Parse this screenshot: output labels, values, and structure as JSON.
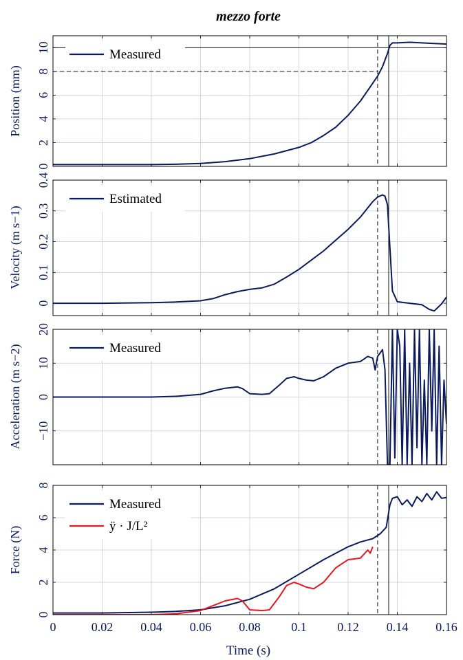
{
  "figure": {
    "title": "mezzo forte",
    "xlabel": "Time (s)"
  },
  "colors": {
    "navy": "#0a1a5c",
    "red": "#e8141e",
    "grid": "#c8cce0"
  },
  "chart_data": [
    {
      "type": "line",
      "ylabel": "Position (mm)",
      "xlim": [
        0,
        0.16
      ],
      "ylim": [
        0,
        11
      ],
      "xticks": [
        "0",
        "0.02",
        "0.04",
        "0.06",
        "0.08",
        "0.1",
        "0.12",
        "0.14",
        "0.16"
      ],
      "yticks": [
        "0",
        "2",
        "4",
        "6",
        "8",
        "10"
      ],
      "legend": {
        "position": "top-left",
        "entries": [
          "Measured"
        ]
      },
      "series": [
        {
          "name": "Measured",
          "color": "#0a1a5c",
          "x": [
            0,
            0.02,
            0.04,
            0.05,
            0.06,
            0.07,
            0.08,
            0.09,
            0.1,
            0.105,
            0.11,
            0.115,
            0.12,
            0.125,
            0.13,
            0.132,
            0.134,
            0.136,
            0.137,
            0.138,
            0.14,
            0.145,
            0.15,
            0.155,
            0.16
          ],
          "y": [
            0.15,
            0.15,
            0.15,
            0.18,
            0.25,
            0.4,
            0.65,
            1.05,
            1.6,
            2.0,
            2.6,
            3.3,
            4.3,
            5.5,
            7.0,
            7.6,
            8.4,
            9.5,
            10.2,
            10.4,
            10.4,
            10.45,
            10.4,
            10.35,
            10.3
          ]
        }
      ],
      "reference_lines": {
        "h_solid_y": 10,
        "h_dashed_y": 8,
        "v_dashed_x": 0.132,
        "v_solid_x": 0.1365
      }
    },
    {
      "type": "line",
      "ylabel": "Velocity (m s−1)",
      "xlim": [
        0,
        0.16
      ],
      "ylim": [
        -0.04,
        0.4
      ],
      "xticks": [
        "0",
        "0.02",
        "0.04",
        "0.06",
        "0.08",
        "0.1",
        "0.12",
        "0.14",
        "0.16"
      ],
      "yticks": [
        "0",
        "0.1",
        "0.2",
        "0.3",
        "0.4"
      ],
      "legend": {
        "position": "top-left",
        "entries": [
          "Estimated"
        ]
      },
      "series": [
        {
          "name": "Estimated",
          "color": "#0a1a5c",
          "x": [
            0,
            0.02,
            0.04,
            0.05,
            0.06,
            0.065,
            0.07,
            0.075,
            0.08,
            0.085,
            0.09,
            0.095,
            0.1,
            0.105,
            0.11,
            0.115,
            0.12,
            0.125,
            0.13,
            0.132,
            0.134,
            0.135,
            0.136,
            0.137,
            0.138,
            0.14,
            0.145,
            0.15,
            0.153,
            0.155,
            0.158,
            0.16
          ],
          "y": [
            0,
            0,
            0.002,
            0.004,
            0.008,
            0.015,
            0.028,
            0.038,
            0.045,
            0.05,
            0.062,
            0.085,
            0.11,
            0.14,
            0.17,
            0.205,
            0.24,
            0.28,
            0.33,
            0.345,
            0.352,
            0.348,
            0.32,
            0.18,
            0.04,
            0.005,
            0,
            -0.005,
            -0.02,
            -0.025,
            -0.002,
            0.02
          ]
        }
      ],
      "reference_lines": {
        "v_dashed_x": 0.132,
        "v_solid_x": 0.1365
      }
    },
    {
      "type": "line",
      "ylabel": "Acceleration (m s−2)",
      "xlim": [
        0,
        0.16
      ],
      "ylim": [
        -20,
        20
      ],
      "xticks": [
        "0",
        "0.02",
        "0.04",
        "0.06",
        "0.08",
        "0.1",
        "0.12",
        "0.14",
        "0.16"
      ],
      "yticks": [
        "−10",
        "0",
        "10",
        "20"
      ],
      "legend": {
        "position": "top-left",
        "entries": [
          "Measured"
        ]
      },
      "series": [
        {
          "name": "Measured",
          "color": "#0a1a5c",
          "x": [
            0,
            0.02,
            0.04,
            0.05,
            0.06,
            0.065,
            0.07,
            0.075,
            0.077,
            0.08,
            0.085,
            0.088,
            0.092,
            0.095,
            0.098,
            0.1,
            0.103,
            0.106,
            0.11,
            0.115,
            0.12,
            0.125,
            0.128,
            0.13,
            0.131,
            0.132,
            0.133,
            0.134,
            0.135,
            0.136,
            0.137,
            0.138,
            0.139,
            0.14,
            0.141,
            0.142,
            0.143,
            0.144,
            0.145,
            0.146,
            0.147,
            0.148,
            0.149,
            0.15,
            0.151,
            0.152,
            0.153,
            0.154,
            0.155,
            0.156,
            0.157,
            0.158,
            0.159,
            0.16
          ],
          "y": [
            0,
            0,
            0,
            0.2,
            0.8,
            1.8,
            2.6,
            3,
            2.5,
            1,
            0.8,
            1,
            3.5,
            5.5,
            6,
            5.5,
            5,
            4.8,
            6,
            8.5,
            10,
            10.5,
            12,
            11.5,
            8,
            12,
            13,
            14,
            8,
            -20,
            -20,
            20,
            -18,
            20,
            15,
            -20,
            20,
            -20,
            10,
            -20,
            20,
            -15,
            20,
            -20,
            5,
            -20,
            20,
            -10,
            20,
            -20,
            15,
            -20,
            5,
            -8
          ]
        }
      ],
      "reference_lines": {
        "v_dashed_x": 0.132,
        "v_solid_x": 0.1365
      }
    },
    {
      "type": "line",
      "ylabel": "Force (N)",
      "xlabel": "Time (s)",
      "xlim": [
        0,
        0.16
      ],
      "ylim": [
        0,
        8
      ],
      "xticks": [
        "0",
        "0.02",
        "0.04",
        "0.06",
        "0.08",
        "0.1",
        "0.12",
        "0.14",
        "0.16"
      ],
      "yticks": [
        "0",
        "2",
        "4",
        "6",
        "8"
      ],
      "legend": {
        "position": "top-left",
        "entries": [
          "Measured",
          "ÿ · J/L²"
        ]
      },
      "series": [
        {
          "name": "Measured",
          "color": "#0a1a5c",
          "x": [
            0,
            0.02,
            0.04,
            0.05,
            0.06,
            0.07,
            0.08,
            0.09,
            0.1,
            0.11,
            0.12,
            0.125,
            0.13,
            0.133,
            0.1355,
            0.137,
            0.138,
            0.14,
            0.142,
            0.144,
            0.146,
            0.148,
            0.15,
            0.152,
            0.154,
            0.156,
            0.158,
            0.16
          ],
          "y": [
            0.1,
            0.1,
            0.15,
            0.2,
            0.3,
            0.55,
            0.95,
            1.6,
            2.5,
            3.4,
            4.2,
            4.5,
            4.7,
            5,
            5.4,
            6.8,
            7.2,
            7.3,
            6.8,
            7.1,
            6.7,
            7.3,
            7.0,
            7.5,
            7.1,
            7.6,
            7.2,
            7.25
          ]
        },
        {
          "name": "ÿ · J/L²",
          "color": "#e8141e",
          "x": [
            0,
            0.02,
            0.04,
            0.05,
            0.06,
            0.065,
            0.07,
            0.075,
            0.077,
            0.08,
            0.085,
            0.088,
            0.092,
            0.095,
            0.098,
            0.1,
            0.103,
            0.106,
            0.11,
            0.115,
            0.12,
            0.125,
            0.128,
            0.129,
            0.13
          ],
          "y": [
            0,
            0,
            0,
            0.05,
            0.25,
            0.55,
            0.85,
            1.0,
            0.85,
            0.3,
            0.25,
            0.3,
            1.1,
            1.8,
            2.0,
            1.9,
            1.7,
            1.6,
            2.0,
            2.9,
            3.4,
            3.5,
            4.0,
            3.8,
            4.2
          ]
        }
      ],
      "reference_lines": {
        "v_dashed_x": 0.132,
        "v_solid_x": 0.1365
      }
    }
  ]
}
